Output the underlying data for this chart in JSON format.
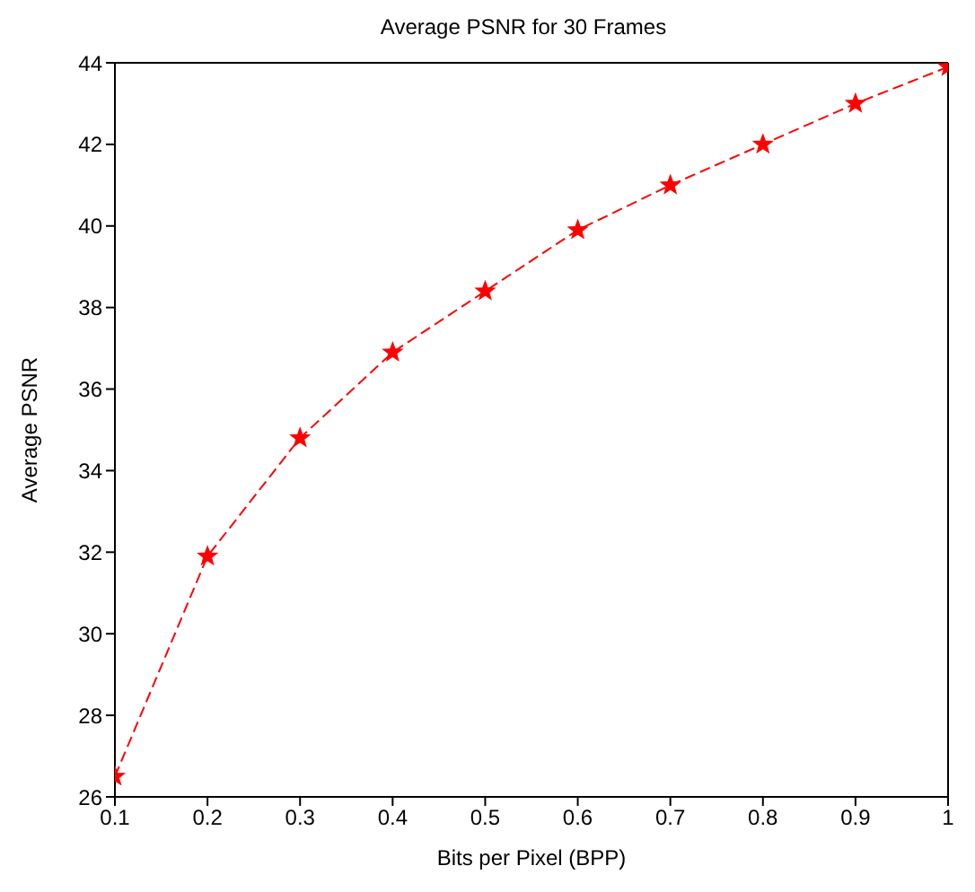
{
  "chart_data": {
    "type": "line",
    "title": "Average PSNR for 30 Frames",
    "xlabel": "Bits per Pixel (BPP)",
    "ylabel": "Average PSNR",
    "x": [
      0.1,
      0.2,
      0.3,
      0.4,
      0.5,
      0.6,
      0.7,
      0.8,
      0.9,
      1
    ],
    "series": [
      {
        "color": "#ff0000",
        "values": [
          26.5,
          31.9,
          34.8,
          36.9,
          38.4,
          39.9,
          41.0,
          42.0,
          43.0,
          43.9
        ]
      }
    ],
    "xlim": [
      0.1,
      1
    ],
    "xticks": [
      0.1,
      0.2,
      0.3,
      0.4,
      0.5,
      0.6,
      0.7,
      0.8,
      0.9,
      1
    ],
    "ylim": [
      26,
      44
    ],
    "yticks": [
      26,
      28,
      30,
      32,
      34,
      36,
      38,
      40,
      42,
      44
    ],
    "grid": false,
    "legend": false,
    "marker": "star",
    "line_style": "dashed"
  }
}
